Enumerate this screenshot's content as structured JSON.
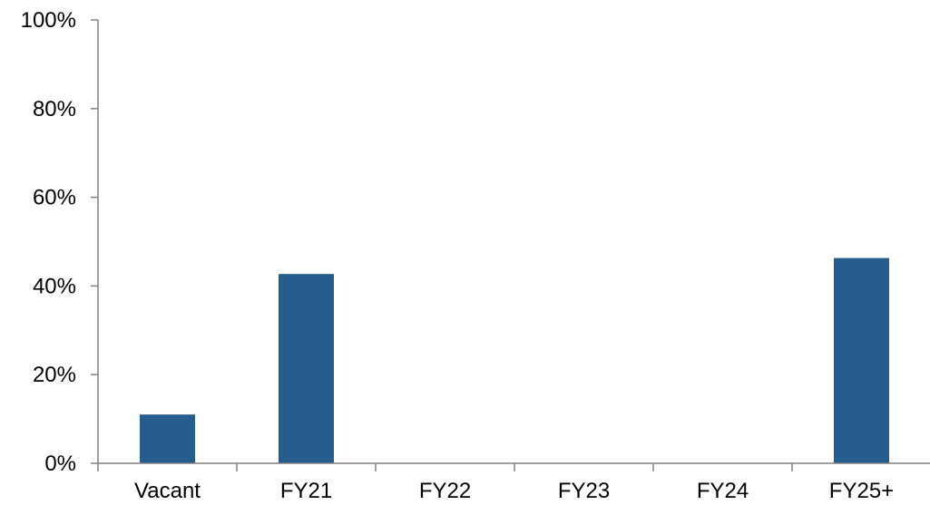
{
  "chart_data": {
    "type": "bar",
    "categories": [
      "Vacant",
      "FY21",
      "FY22",
      "FY23",
      "FY24",
      "FY25+"
    ],
    "values": [
      11,
      42.7,
      0,
      0,
      0,
      46.3
    ],
    "ylim": [
      0,
      100
    ],
    "yticks": [
      0,
      20,
      40,
      60,
      80,
      100
    ],
    "ytick_labels": [
      "0%",
      "20%",
      "40%",
      "60%",
      "80%",
      "100%"
    ],
    "grid": false,
    "legend": "none",
    "bar_color": "#255D8E"
  }
}
